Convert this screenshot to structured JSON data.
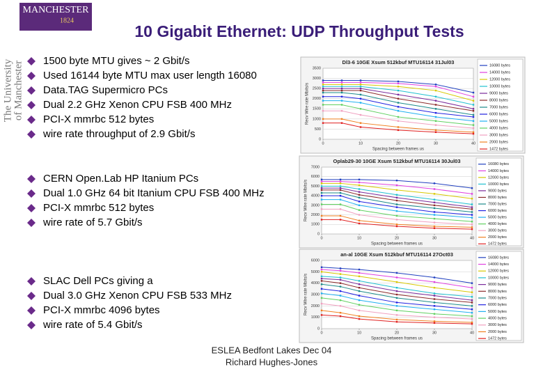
{
  "slide": {
    "logo": {
      "name": "MANCHESTER",
      "year": "1824"
    },
    "sidebar": [
      "The University",
      "of Manchester"
    ],
    "title": "10 Gigabit Ethernet: UDP Throughput Tests",
    "bullet_groups": [
      [
        "1500 byte MTU gives ~ 2 Gbit/s",
        "Used 16144 byte MTU max user length 16080",
        "Data.TAG Supermicro PCs",
        "Dual 2.2 GHz Xenon CPU FSB 400 MHz",
        "PCI-X mmrbc 512 bytes",
        "wire rate throughput of 2.9 Gbit/s"
      ],
      [
        "CERN Open.Lab HP Itanium PCs",
        "Dual 1.0 GHz 64 bit Itanium CPU FSB 400 MHz",
        "PCI-X mmrbc 512 bytes",
        "wire rate of 5.7 Gbit/s"
      ],
      [
        "SLAC Dell PCs giving a",
        "Dual 3.0 GHz Xenon CPU FSB 533 MHz",
        "PCI-X mmrbc 4096 bytes",
        "wire rate of 5.4 Gbit/s"
      ]
    ],
    "footer": [
      "ESLEA Bedfont Lakes Dec 04",
      "Richard Hughes-Jones"
    ]
  },
  "chart_data": [
    {
      "type": "line",
      "title": "Dl3-6 10GE Xsum 512kbuf MTU16114 31Jul03",
      "x_label": "Spacing between frames us",
      "y_label": "Recv Wire rate Mbits/s",
      "x": [
        0,
        5,
        10,
        20,
        30,
        40
      ],
      "xlim": [
        0,
        40
      ],
      "xticks": [
        0,
        10,
        20,
        30,
        40
      ],
      "ylim": [
        0,
        3500
      ],
      "yticks": [
        0,
        500,
        1000,
        1500,
        2000,
        2500,
        3000,
        3500
      ],
      "grid": true,
      "legend": "right",
      "series": [
        {
          "name": "16080 bytes",
          "color": "#1f3fbf",
          "values": [
            2900,
            2900,
            2900,
            2850,
            2700,
            2300
          ]
        },
        {
          "name": "14000 bytes",
          "color": "#e040e0",
          "values": [
            2800,
            2800,
            2800,
            2750,
            2600,
            2100
          ]
        },
        {
          "name": "12000 bytes",
          "color": "#d8c800",
          "values": [
            2700,
            2700,
            2700,
            2600,
            2400,
            1900
          ]
        },
        {
          "name": "10000 bytes",
          "color": "#20c0d0",
          "values": [
            2600,
            2600,
            2600,
            2400,
            2100,
            1700
          ]
        },
        {
          "name": "9000 bytes",
          "color": "#7a2a9a",
          "values": [
            2500,
            2500,
            2500,
            2200,
            1900,
            1500
          ]
        },
        {
          "name": "8000 bytes",
          "color": "#8b2a2a",
          "values": [
            2400,
            2400,
            2400,
            2000,
            1700,
            1400
          ]
        },
        {
          "name": "7000 bytes",
          "color": "#1a8a8a",
          "values": [
            2300,
            2300,
            2200,
            1800,
            1500,
            1200
          ]
        },
        {
          "name": "6000 bytes",
          "color": "#2020e0",
          "values": [
            2100,
            2100,
            2000,
            1600,
            1300,
            1100
          ]
        },
        {
          "name": "5000 bytes",
          "color": "#20b0f0",
          "values": [
            1900,
            1900,
            1800,
            1400,
            1100,
            900
          ]
        },
        {
          "name": "4000 bytes",
          "color": "#60d060",
          "values": [
            1700,
            1700,
            1500,
            1100,
            900,
            700
          ]
        },
        {
          "name": "3000 bytes",
          "color": "#f0a0c0",
          "values": [
            1400,
            1400,
            1200,
            900,
            700,
            550
          ]
        },
        {
          "name": "2000 bytes",
          "color": "#f08020",
          "values": [
            1000,
            1000,
            800,
            600,
            450,
            350
          ]
        },
        {
          "name": "1472 bytes",
          "color": "#e02020",
          "values": [
            800,
            800,
            600,
            450,
            350,
            270
          ]
        }
      ]
    },
    {
      "type": "line",
      "title": "Oplab29-30 10GE Xsum 512kbuf MTU16114 30Jul03",
      "x_label": "Spacing between frames us",
      "y_label": "Recv Wire rate Mbits/s",
      "x": [
        0,
        5,
        10,
        20,
        30,
        40
      ],
      "xlim": [
        0,
        40
      ],
      "xticks": [
        0,
        10,
        20,
        30,
        40
      ],
      "ylim": [
        0,
        7000
      ],
      "yticks": [
        0,
        1000,
        2000,
        3000,
        4000,
        5000,
        6000,
        7000
      ],
      "grid": true,
      "legend": "right",
      "series": [
        {
          "name": "16080 bytes",
          "color": "#1f3fbf",
          "values": [
            5700,
            5700,
            5700,
            5600,
            5300,
            4800
          ]
        },
        {
          "name": "14000 bytes",
          "color": "#e040e0",
          "values": [
            5500,
            5500,
            5400,
            5100,
            4700,
            4200
          ]
        },
        {
          "name": "12000 bytes",
          "color": "#d8c800",
          "values": [
            5300,
            5300,
            5100,
            4600,
            4200,
            3700
          ]
        },
        {
          "name": "10000 bytes",
          "color": "#20c0d0",
          "values": [
            5000,
            5000,
            4700,
            4100,
            3600,
            3100
          ]
        },
        {
          "name": "9000 bytes",
          "color": "#7a2a9a",
          "values": [
            4800,
            4800,
            4400,
            3800,
            3300,
            2800
          ]
        },
        {
          "name": "8000 bytes",
          "color": "#8b2a2a",
          "values": [
            4600,
            4600,
            4100,
            3500,
            3000,
            2600
          ]
        },
        {
          "name": "7000 bytes",
          "color": "#1a8a8a",
          "values": [
            4300,
            4300,
            3800,
            3100,
            2700,
            2300
          ]
        },
        {
          "name": "6000 bytes",
          "color": "#2020e0",
          "values": [
            4000,
            4000,
            3400,
            2800,
            2300,
            2000
          ]
        },
        {
          "name": "5000 bytes",
          "color": "#20b0f0",
          "values": [
            3600,
            3600,
            3000,
            2400,
            2000,
            1700
          ]
        },
        {
          "name": "4000 bytes",
          "color": "#60d060",
          "values": [
            3100,
            3100,
            2500,
            1900,
            1600,
            1300
          ]
        },
        {
          "name": "3000 bytes",
          "color": "#f0a0c0",
          "values": [
            2600,
            2600,
            2000,
            1500,
            1200,
            1000
          ]
        },
        {
          "name": "2000 bytes",
          "color": "#f08020",
          "values": [
            1900,
            1900,
            1400,
            1000,
            800,
            700
          ]
        },
        {
          "name": "1472 bytes",
          "color": "#e02020",
          "values": [
            1500,
            1500,
            1100,
            800,
            600,
            500
          ]
        }
      ]
    },
    {
      "type": "line",
      "title": "an-al 10GE Xsum 512kbuf MTU16114 27Oct03",
      "x_label": "Spacing between frames us",
      "y_label": "Recv Wire rate Mbits/s",
      "x": [
        0,
        5,
        10,
        20,
        30,
        40
      ],
      "xlim": [
        0,
        40
      ],
      "xticks": [
        0,
        10,
        20,
        30,
        40
      ],
      "ylim": [
        0,
        6000
      ],
      "yticks": [
        0,
        1000,
        2000,
        3000,
        4000,
        5000,
        6000
      ],
      "grid": true,
      "legend": "right",
      "series": [
        {
          "name": "16080 bytes",
          "color": "#1f3fbf",
          "values": [
            5400,
            5300,
            5200,
            4900,
            4500,
            4000
          ]
        },
        {
          "name": "14000 bytes",
          "color": "#e040e0",
          "values": [
            5200,
            5100,
            4900,
            4500,
            4100,
            3600
          ]
        },
        {
          "name": "12000 bytes",
          "color": "#d8c800",
          "values": [
            5000,
            4800,
            4600,
            4100,
            3600,
            3200
          ]
        },
        {
          "name": "10000 bytes",
          "color": "#20c0d0",
          "values": [
            4600,
            4500,
            4200,
            3600,
            3100,
            2800
          ]
        },
        {
          "name": "9000 bytes",
          "color": "#7a2a9a",
          "values": [
            4400,
            4300,
            3900,
            3300,
            2900,
            2500
          ]
        },
        {
          "name": "8000 bytes",
          "color": "#8b2a2a",
          "values": [
            4200,
            4000,
            3600,
            3000,
            2600,
            2300
          ]
        },
        {
          "name": "7000 bytes",
          "color": "#1a8a8a",
          "values": [
            3900,
            3700,
            3300,
            2700,
            2300,
            2000
          ]
        },
        {
          "name": "6000 bytes",
          "color": "#2020e0",
          "values": [
            3500,
            3300,
            2900,
            2300,
            2000,
            1700
          ]
        },
        {
          "name": "5000 bytes",
          "color": "#20b0f0",
          "values": [
            3100,
            2900,
            2500,
            2000,
            1700,
            1400
          ]
        },
        {
          "name": "4000 bytes",
          "color": "#60d060",
          "values": [
            2700,
            2500,
            2100,
            1600,
            1300,
            1100
          ]
        },
        {
          "name": "3000 bytes",
          "color": "#f0a0c0",
          "values": [
            2200,
            2000,
            1600,
            1200,
            1000,
            850
          ]
        },
        {
          "name": "2000 bytes",
          "color": "#f08020",
          "values": [
            1600,
            1400,
            1100,
            800,
            650,
            550
          ]
        },
        {
          "name": "1472 bytes",
          "color": "#e02020",
          "values": [
            1200,
            1100,
            850,
            600,
            500,
            420
          ]
        }
      ]
    }
  ]
}
